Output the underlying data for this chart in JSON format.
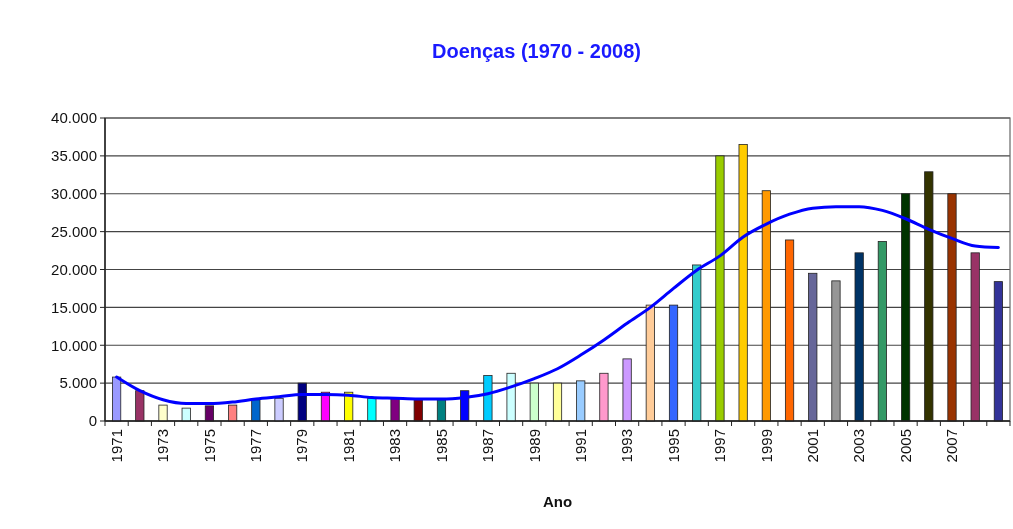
{
  "chart_data": {
    "type": "bar",
    "title": "Doenças (1970 - 2008)",
    "xlabel": "Ano",
    "categories": [
      "1971",
      null,
      "1973",
      null,
      "1975",
      null,
      "1977",
      null,
      "1979",
      null,
      "1981",
      null,
      "1983",
      null,
      "1985",
      null,
      "1987",
      null,
      "1989",
      null,
      "1991",
      null,
      "1993",
      null,
      "1995",
      null,
      "1997",
      null,
      "1999",
      null,
      "2001",
      null,
      "2003",
      null,
      "2005",
      null,
      "2007",
      null,
      null
    ],
    "series": [
      {
        "values": [
          5800,
          4000,
          2100,
          1700,
          2000,
          2100,
          2800,
          3000,
          5000,
          3800,
          3800,
          3000,
          3000,
          2800,
          2800,
          4000,
          6000,
          6300,
          5000,
          5000,
          5300,
          6300,
          8200,
          15300,
          15300,
          20600,
          35000,
          36500,
          30400,
          23900,
          19500,
          18500,
          22200,
          23700,
          30000,
          32900,
          30000,
          22200,
          18400
        ],
        "colors": [
          "#9999ff",
          "#993366",
          "#ffffcc",
          "#ccffff",
          "#660066",
          "#ff8080",
          "#0066cc",
          "#ccccff",
          "#000080",
          "#ff00ff",
          "#ffff00",
          "#00ffff",
          "#800080",
          "#800000",
          "#008080",
          "#0000ff",
          "#00ccff",
          "#ccffff",
          "#ccffcc",
          "#ffff99",
          "#99ccff",
          "#ff99cc",
          "#cc99ff",
          "#ffcc99",
          "#3366ff",
          "#33cccc",
          "#99cc00",
          "#ffcc00",
          "#ff9900",
          "#ff6600",
          "#666699",
          "#969696",
          "#003366",
          "#339966",
          "#003300",
          "#333300",
          "#993300",
          "#993366",
          "#333399"
        ]
      },
      {
        "type": "line",
        "color": "#0000ff",
        "values": [
          5800,
          4000,
          2800,
          2300,
          2300,
          2500,
          2900,
          3200,
          3500,
          3500,
          3400,
          3100,
          3000,
          2900,
          2900,
          3100,
          3600,
          4500,
          5600,
          6900,
          8700,
          10700,
          12900,
          15000,
          17500,
          19900,
          21800,
          24300,
          26000,
          27300,
          28100,
          28300,
          28300,
          27800,
          26700,
          25300,
          24100,
          23100,
          22900
        ]
      }
    ],
    "ylim": [
      0,
      40000
    ],
    "yticks": [
      {
        "value": 0,
        "label": "0"
      },
      {
        "value": 5000,
        "label": "5.000"
      },
      {
        "value": 10000,
        "label": "10.000"
      },
      {
        "value": 15000,
        "label": "15.000"
      },
      {
        "value": 20000,
        "label": "20.000"
      },
      {
        "value": 25000,
        "label": "25.000"
      },
      {
        "value": 30000,
        "label": "30.000"
      },
      {
        "value": 35000,
        "label": "35.000"
      },
      {
        "value": 40000,
        "label": "40.000"
      }
    ],
    "grid": "y"
  }
}
